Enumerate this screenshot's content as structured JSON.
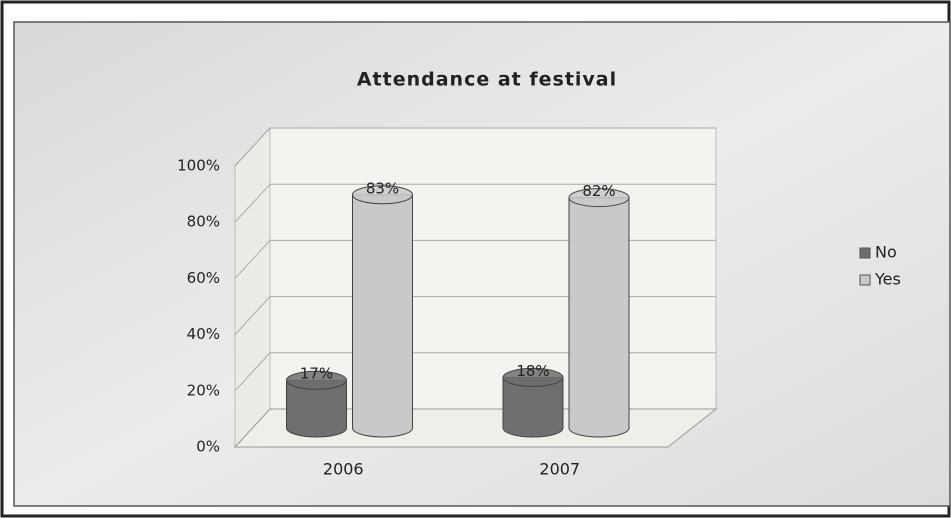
{
  "chart_data": {
    "type": "bar3d",
    "title": "Attendance at festival",
    "categories": [
      "2006",
      "2007"
    ],
    "series": [
      {
        "name": "No",
        "color": "#6f6f6f",
        "values": [
          17,
          18
        ],
        "value_labels": [
          "17%",
          "18%"
        ]
      },
      {
        "name": "Yes",
        "color": "#c9c9c9",
        "values": [
          83,
          82
        ],
        "value_labels": [
          "83%",
          "82%"
        ]
      }
    ],
    "ylim": [
      0,
      100
    ],
    "yticks": [
      {
        "value": 0,
        "label": "0%"
      },
      {
        "value": 20,
        "label": "20%"
      },
      {
        "value": 40,
        "label": "40%"
      },
      {
        "value": 60,
        "label": "60%"
      },
      {
        "value": 80,
        "label": "80%"
      },
      {
        "value": 100,
        "label": "100%"
      }
    ],
    "grid": true,
    "legend": "right"
  }
}
